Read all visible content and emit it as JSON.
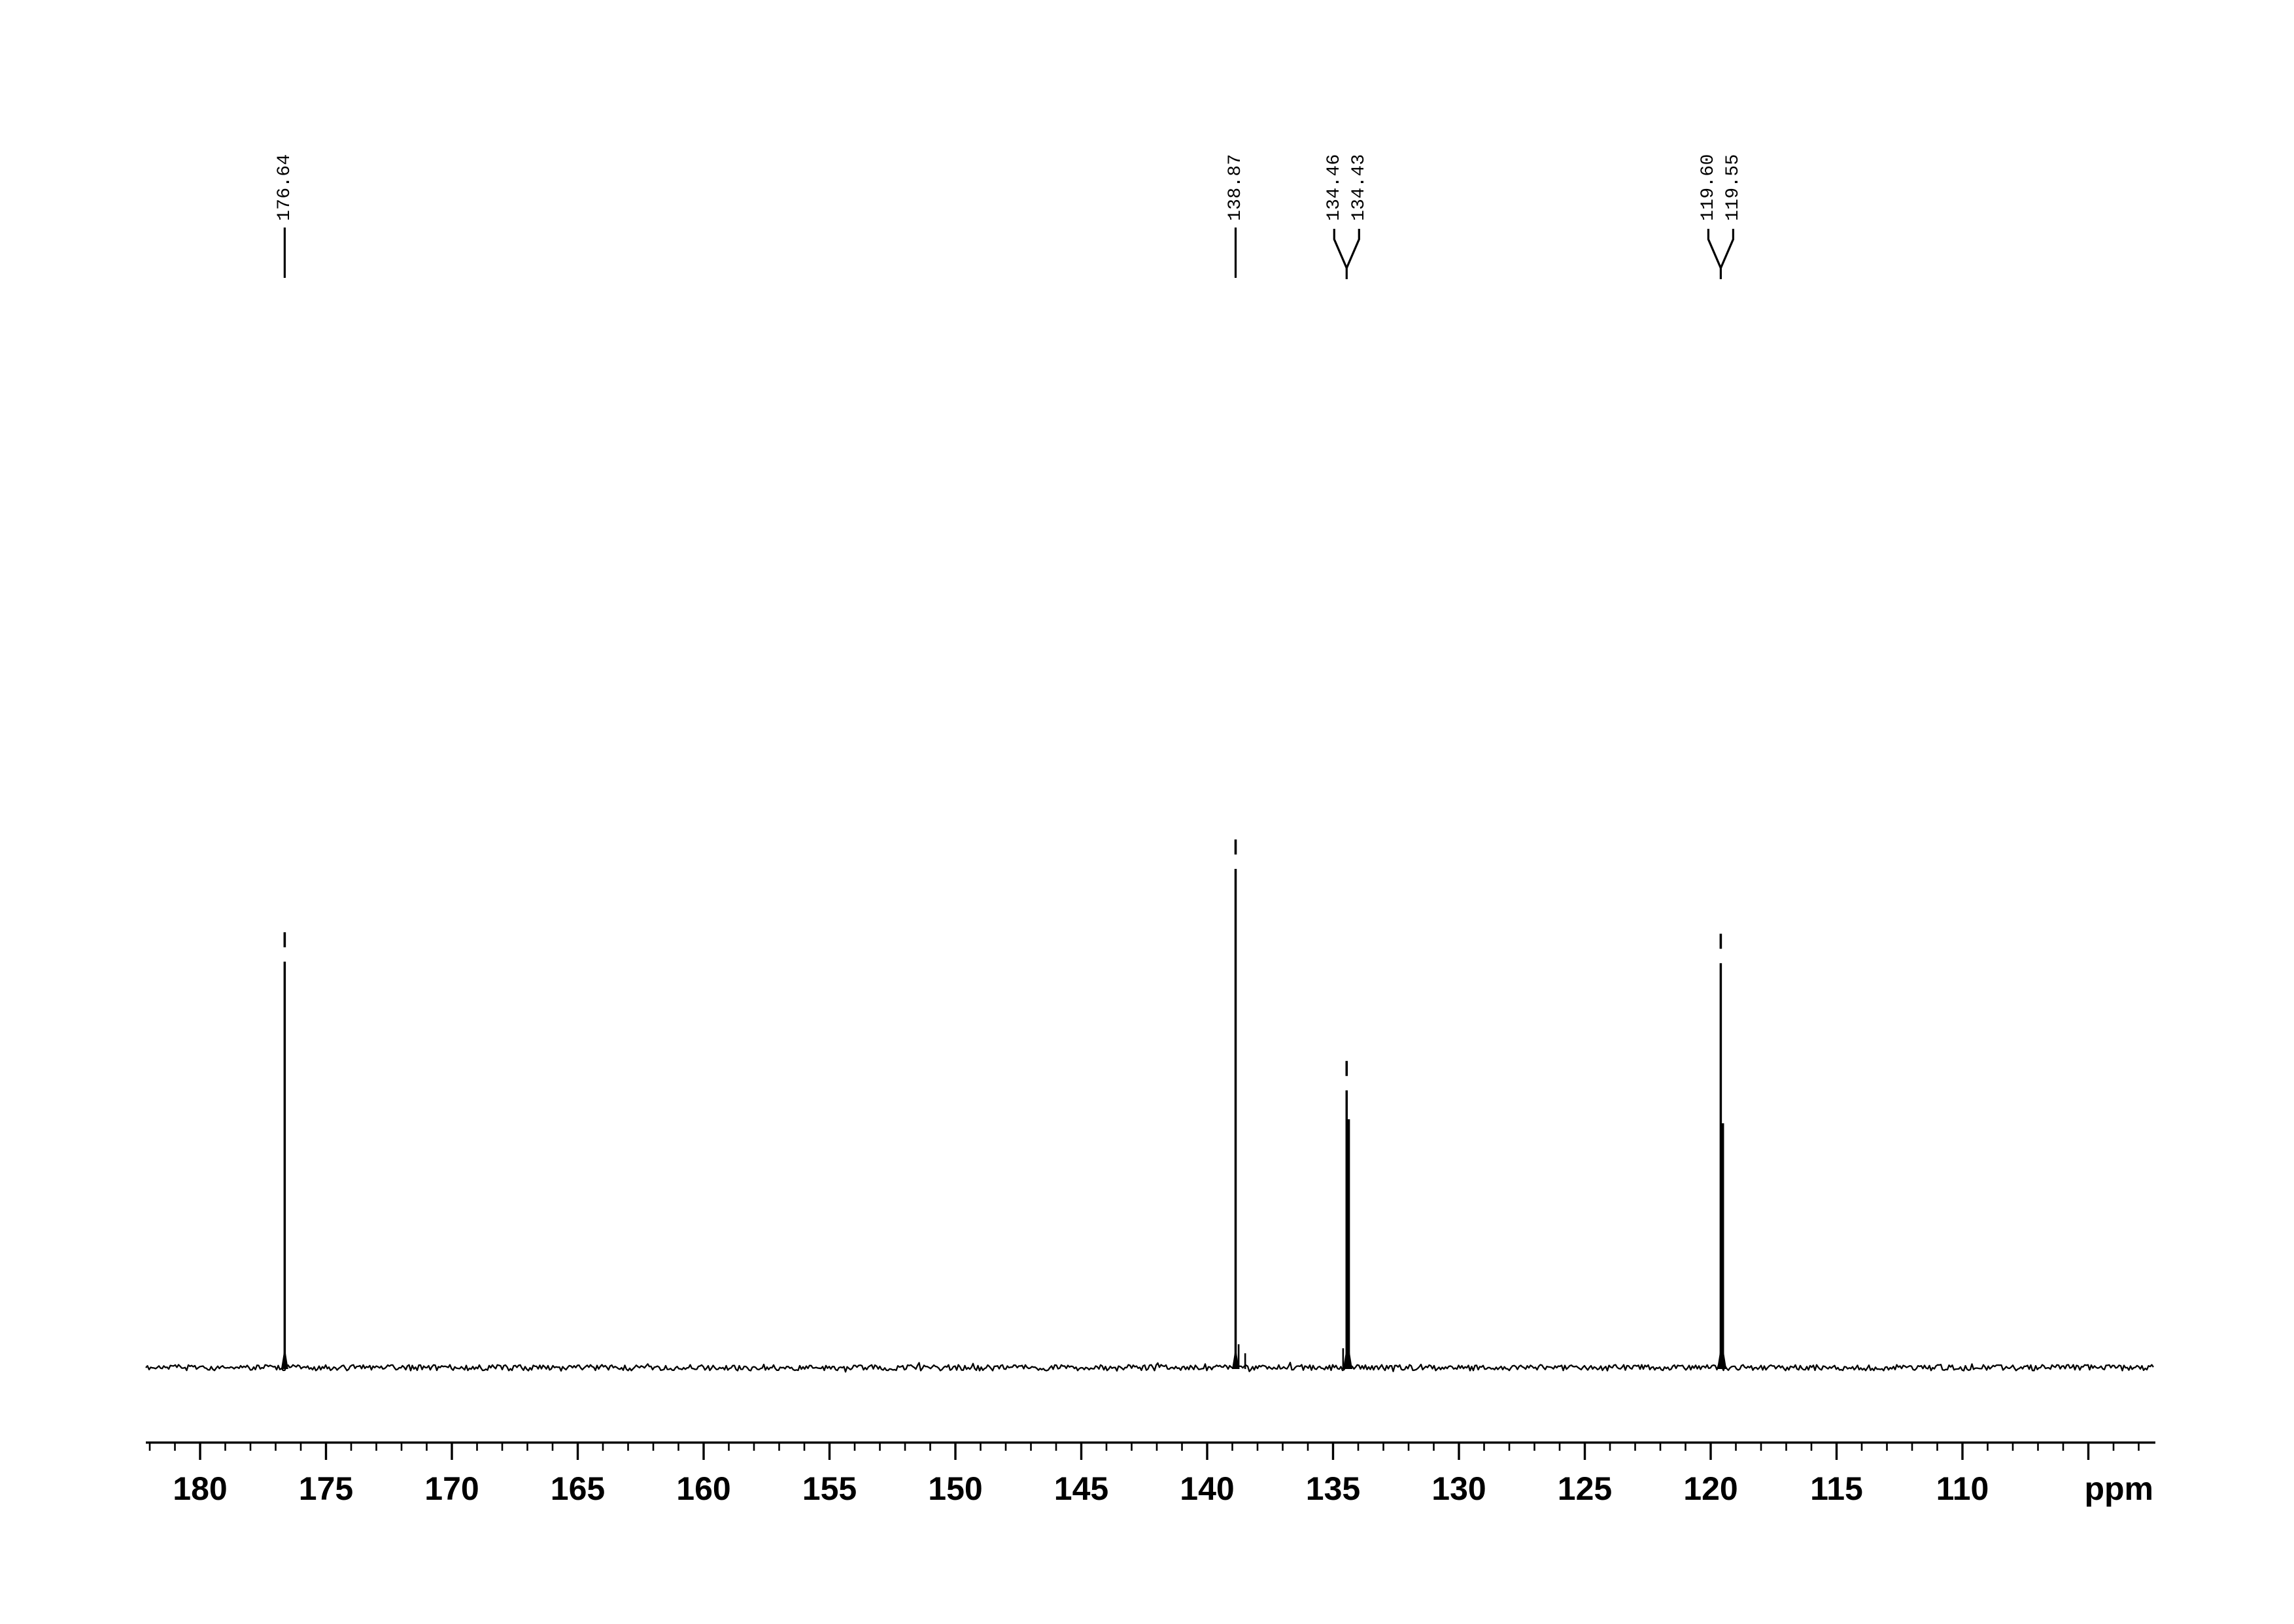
{
  "colors": {
    "background": "#ffffff",
    "trace": "#000000",
    "text": "#000000"
  },
  "chart_data": {
    "type": "line",
    "subtype": "nmr-spectrum-13C",
    "title": "",
    "xlabel": "ppm",
    "ylabel": "",
    "x_axis": {
      "unit_label": "ppm",
      "direction": "reversed",
      "range": [
        182.2,
        102.3
      ],
      "labeled_ticks": [
        180,
        175,
        170,
        165,
        160,
        155,
        150,
        145,
        140,
        135,
        130,
        125,
        120,
        115,
        110
      ],
      "major_tick_step": 5,
      "minor_tick_step": 1,
      "major_ticks_extent": [
        180,
        105
      ]
    },
    "y_axis": {
      "visible": false
    },
    "grid": false,
    "legend": false,
    "baseline_noise": true,
    "peaks": [
      {
        "ppm": 176.64,
        "rel_intensity": 0.814
      },
      {
        "ppm": 138.87,
        "rel_intensity": 1.0
      },
      {
        "ppm": 134.46,
        "rel_intensity": 0.556
      },
      {
        "ppm": 134.43,
        "rel_intensity": 0.498
      },
      {
        "ppm": 119.6,
        "rel_intensity": 0.811
      },
      {
        "ppm": 119.55,
        "rel_intensity": 0.49
      }
    ],
    "minor_peaks": [
      {
        "ppm": 138.75,
        "rel_intensity": 0.047
      },
      {
        "ppm": 138.49,
        "rel_intensity": 0.029
      },
      {
        "ppm": 134.6,
        "rel_intensity": 0.039
      }
    ],
    "peak_annotations": [
      {
        "labels": [
          "176.64"
        ],
        "connector": "single",
        "anchor_ppm": 176.64
      },
      {
        "labels": [
          "138.87"
        ],
        "connector": "single",
        "anchor_ppm": 138.87
      },
      {
        "labels": [
          "134.46",
          "134.43"
        ],
        "connector": "fork",
        "anchor_ppm": 134.46
      },
      {
        "labels": [
          "119.60",
          "119.55"
        ],
        "connector": "fork",
        "anchor_ppm": 119.6
      }
    ]
  }
}
